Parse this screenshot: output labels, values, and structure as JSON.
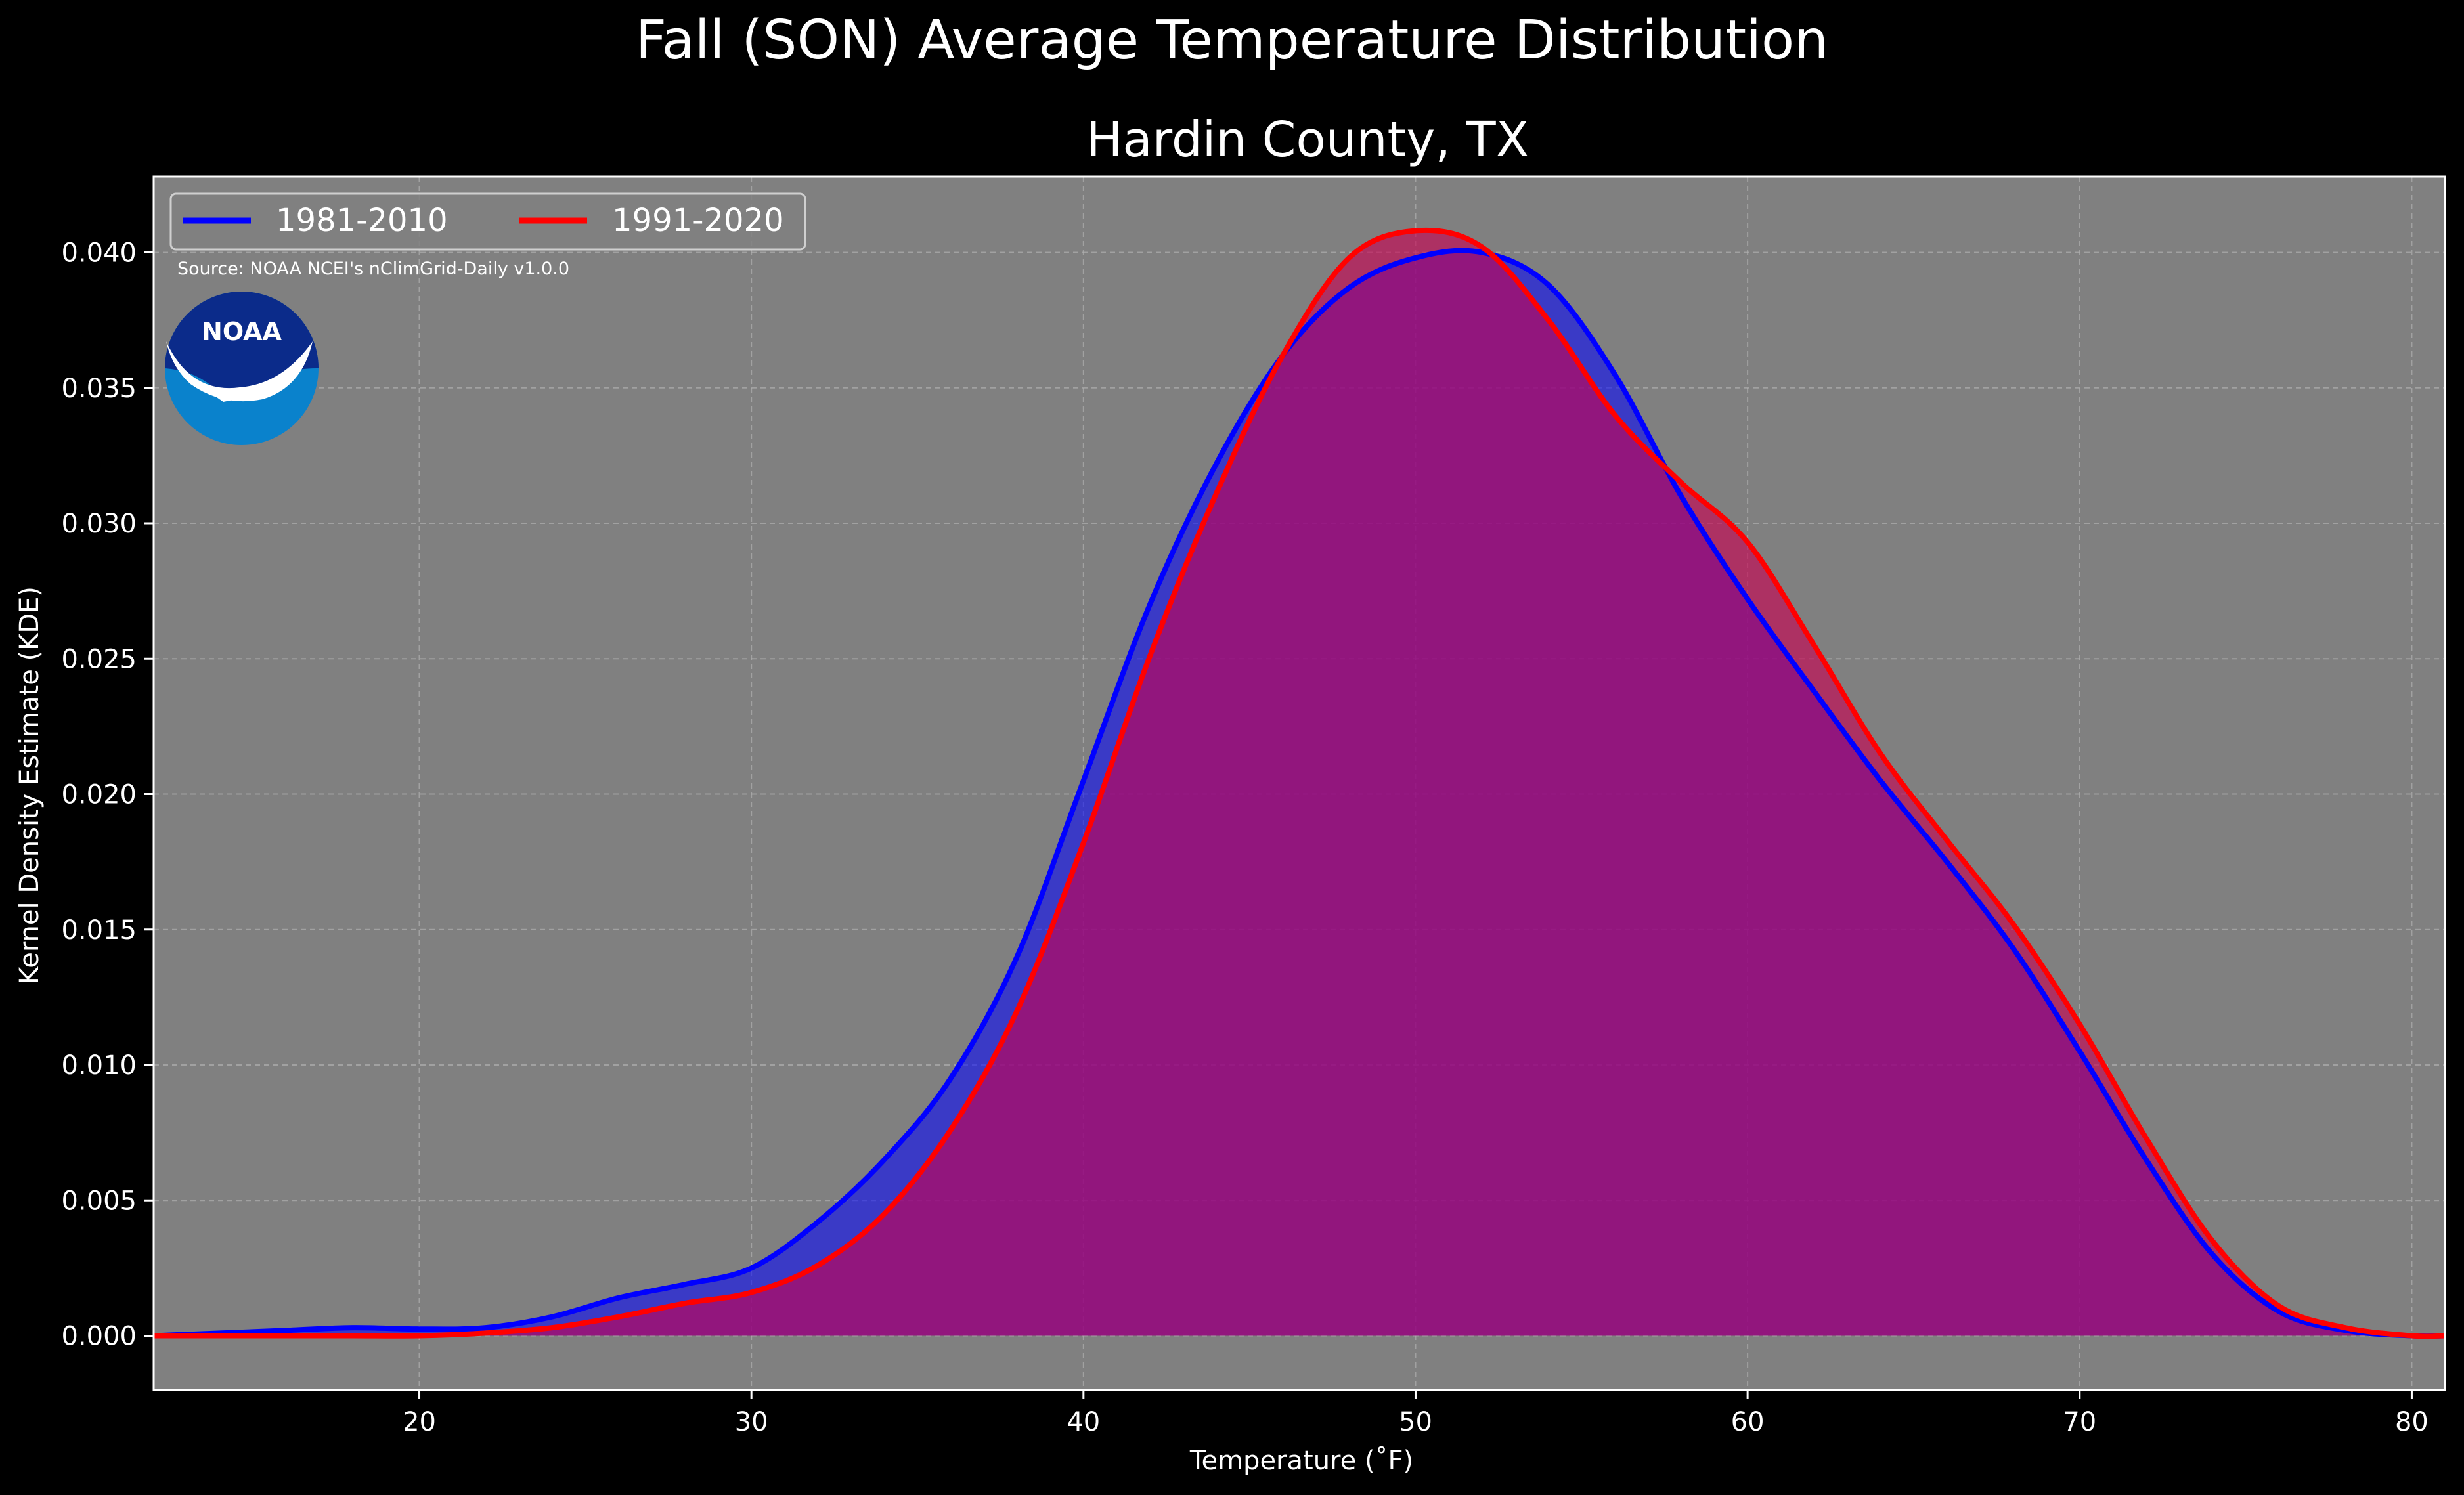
{
  "figure": {
    "suptitle": "Fall (SON) Average Temperature Distribution",
    "subtitle": "Hardin County, TX",
    "source": "Source: NOAA NCEI's nClimGrid-Daily v1.0.0",
    "logo_text": "NOAA"
  },
  "colors": {
    "background": "#000000",
    "plot_bg": "#808080",
    "series1": "#0000ff",
    "series2": "#ff0000",
    "fill1": "rgba(0,0,255,0.55)",
    "fill2": "rgba(200,0,80,0.62)",
    "grid": "#b0b0b0",
    "noaa_dark": "#0b2b8a",
    "noaa_light": "#0a82cc"
  },
  "chart_data": {
    "type": "area",
    "title": "Hardin County, TX",
    "xlabel": "Temperature ($^\\circ$F)",
    "ylabel": "Kernel Density Estimate (KDE)",
    "xlim": [
      12,
      81
    ],
    "ylim": [
      -0.002,
      0.0428
    ],
    "xticks": [
      20,
      30,
      40,
      50,
      60,
      70,
      80
    ],
    "yticks": [
      0.0,
      0.005,
      0.01,
      0.015,
      0.02,
      0.025,
      0.03,
      0.035,
      0.04
    ],
    "ytick_labels": [
      "0.000",
      "0.005",
      "0.010",
      "0.015",
      "0.020",
      "0.025",
      "0.030",
      "0.035",
      "0.040"
    ],
    "grid": true,
    "legend_position": "upper left",
    "series": [
      {
        "name": "1981-2010",
        "x": [
          12,
          14,
          16,
          18,
          20,
          22,
          24,
          26,
          28,
          30,
          32,
          34,
          36,
          38,
          40,
          42,
          44,
          46,
          48,
          50,
          52,
          54,
          56,
          58,
          60,
          62,
          64,
          66,
          68,
          70,
          72,
          74,
          76,
          78,
          80,
          81
        ],
        "y": [
          0.0,
          0.0001,
          0.0002,
          0.0003,
          0.00025,
          0.0003,
          0.0007,
          0.0014,
          0.0019,
          0.0025,
          0.0042,
          0.0065,
          0.0095,
          0.014,
          0.0205,
          0.027,
          0.0322,
          0.0362,
          0.0387,
          0.0398,
          0.04,
          0.0388,
          0.0355,
          0.031,
          0.0272,
          0.0238,
          0.0205,
          0.0175,
          0.0143,
          0.0105,
          0.0065,
          0.003,
          0.0009,
          0.0002,
          0.0,
          0.0
        ]
      },
      {
        "name": "1991-2020",
        "x": [
          12,
          14,
          16,
          18,
          20,
          22,
          24,
          26,
          28,
          30,
          32,
          34,
          36,
          38,
          40,
          42,
          44,
          46,
          48,
          50,
          52,
          54,
          56,
          58,
          60,
          62,
          64,
          66,
          68,
          70,
          72,
          74,
          76,
          78,
          80,
          81
        ],
        "y": [
          0.0,
          0.0,
          0.0,
          0.0,
          0.0,
          0.0001,
          0.0003,
          0.0007,
          0.0012,
          0.0016,
          0.0026,
          0.0045,
          0.0076,
          0.012,
          0.0182,
          0.0251,
          0.0311,
          0.0362,
          0.0398,
          0.0408,
          0.0402,
          0.0375,
          0.034,
          0.0315,
          0.0293,
          0.0255,
          0.0215,
          0.0183,
          0.0152,
          0.0115,
          0.0073,
          0.0035,
          0.0011,
          0.0003,
          0.0,
          0.0
        ]
      }
    ]
  }
}
